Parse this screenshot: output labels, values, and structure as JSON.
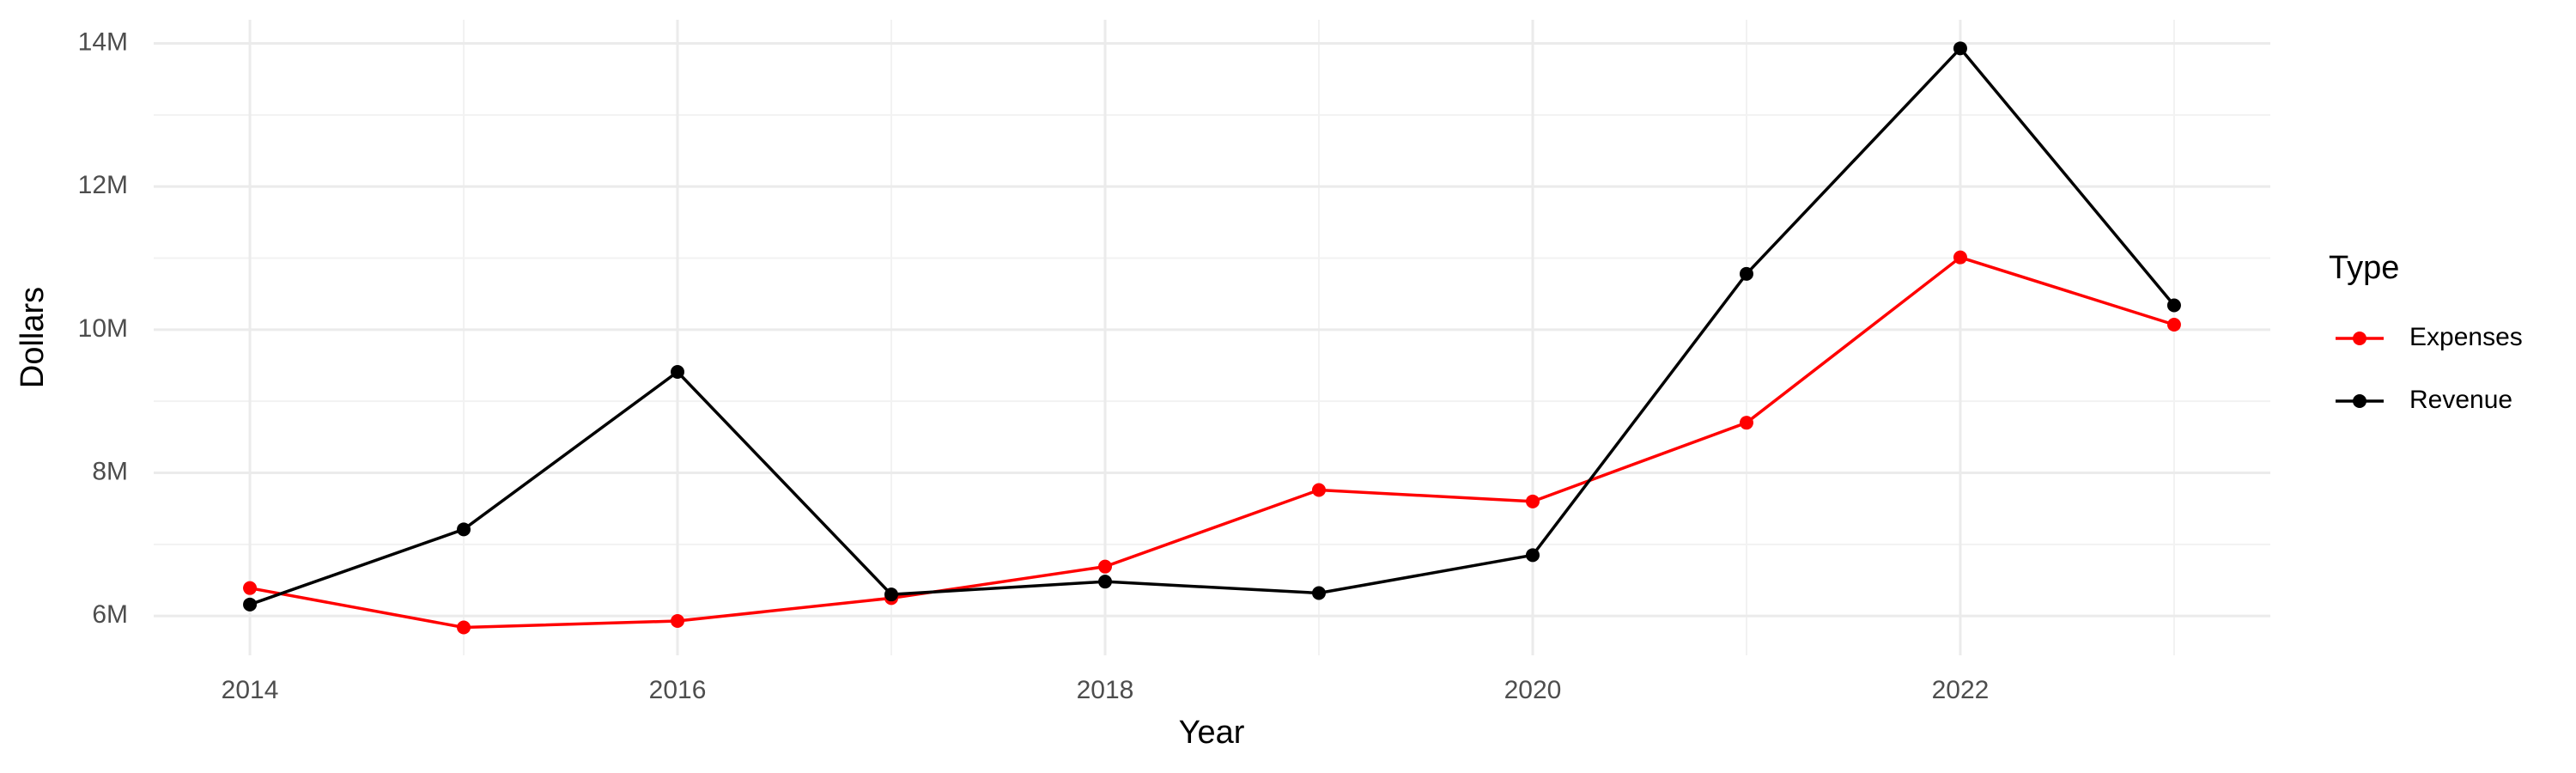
{
  "chart_data": {
    "type": "line",
    "x_label": "Year",
    "y_label": "Dollars",
    "x": [
      2014,
      2015,
      2016,
      2017,
      2018,
      2019,
      2020,
      2021,
      2022,
      2023
    ],
    "series": [
      {
        "name": "Expenses",
        "color": "#ff0000",
        "values": [
          6390000,
          5840000,
          5930000,
          6250000,
          6690000,
          7760000,
          7600000,
          8700000,
          11010000,
          10070000
        ]
      },
      {
        "name": "Revenue",
        "color": "#000000",
        "values": [
          6160000,
          7210000,
          9410000,
          6300000,
          6480000,
          6320000,
          6850000,
          10780000,
          13930000,
          10340000
        ]
      }
    ],
    "xlim": [
      2013.55,
      2023.45
    ],
    "xticks": [
      2014,
      2016,
      2018,
      2020,
      2022
    ],
    "ylim": [
      5450000,
      14330000
    ],
    "yticks": [
      {
        "value": 6000000,
        "label": "6M"
      },
      {
        "value": 8000000,
        "label": "8M"
      },
      {
        "value": 10000000,
        "label": "10M"
      },
      {
        "value": 12000000,
        "label": "12M"
      },
      {
        "value": 14000000,
        "label": "14M"
      }
    ],
    "legend_title": "Type",
    "grid": true,
    "minor_grid": true,
    "legend_position": "right"
  }
}
